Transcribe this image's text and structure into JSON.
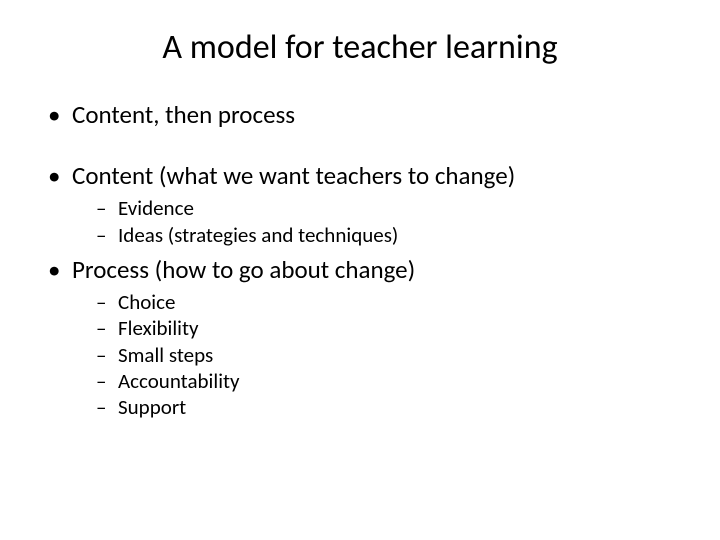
{
  "title": "A model for teacher learning",
  "bullets": [
    {
      "text": "Content, then process",
      "children": []
    },
    {
      "text": "Content (what we want teachers to change)",
      "children": [
        {
          "text": "Evidence"
        },
        {
          "text": "Ideas (strategies and techniques)"
        }
      ]
    },
    {
      "text": "Process (how to go about change)",
      "children": [
        {
          "text": "Choice"
        },
        {
          "text": "Flexibility"
        },
        {
          "text": "Small steps"
        },
        {
          "text": "Accountability"
        },
        {
          "text": "Support"
        }
      ]
    }
  ],
  "colors": {
    "background": "#ffffff",
    "text": "#000000"
  },
  "typography": {
    "title_fontsize": 34,
    "level1_fontsize": 25,
    "level2_fontsize": 21,
    "font_family": "Calibri"
  }
}
